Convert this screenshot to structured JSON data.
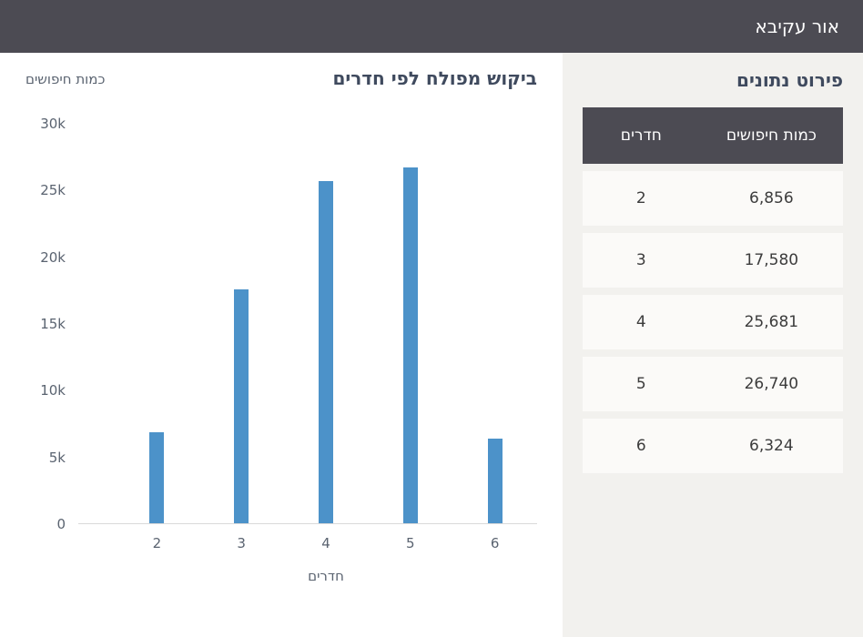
{
  "header": {
    "title": "אור עקיבא"
  },
  "table_panel": {
    "title": "פירוט נתונים",
    "columns": [
      "חדרים",
      "כמות חיפושים"
    ],
    "rows": [
      {
        "rooms": "2",
        "searches": "6,856"
      },
      {
        "rooms": "3",
        "searches": "17,580"
      },
      {
        "rooms": "4",
        "searches": "25,681"
      },
      {
        "rooms": "5",
        "searches": "26,740"
      },
      {
        "rooms": "6",
        "searches": "6,324"
      }
    ]
  },
  "chart_data": {
    "type": "bar",
    "title": "ביקוש מפולח לפי חדרים",
    "categories": [
      "2",
      "3",
      "4",
      "5",
      "6"
    ],
    "values": [
      6856,
      17580,
      25681,
      26740,
      6324
    ],
    "xlabel": "חדרים",
    "ylabel": "כמות חיפושים",
    "ylim": [
      0,
      30000
    ],
    "yticks": [
      "30k",
      "25k",
      "20k",
      "15k",
      "10k",
      "5k",
      "0"
    ],
    "grid": false,
    "legend": false
  },
  "colors": {
    "header_bg": "#4c4b53",
    "bar_color": "#4c92c9",
    "heading_color": "#3f4a5e",
    "page_bg": "#f2f1ee",
    "row_bg": "#fbfaf8",
    "axis_text": "#5a6370"
  }
}
